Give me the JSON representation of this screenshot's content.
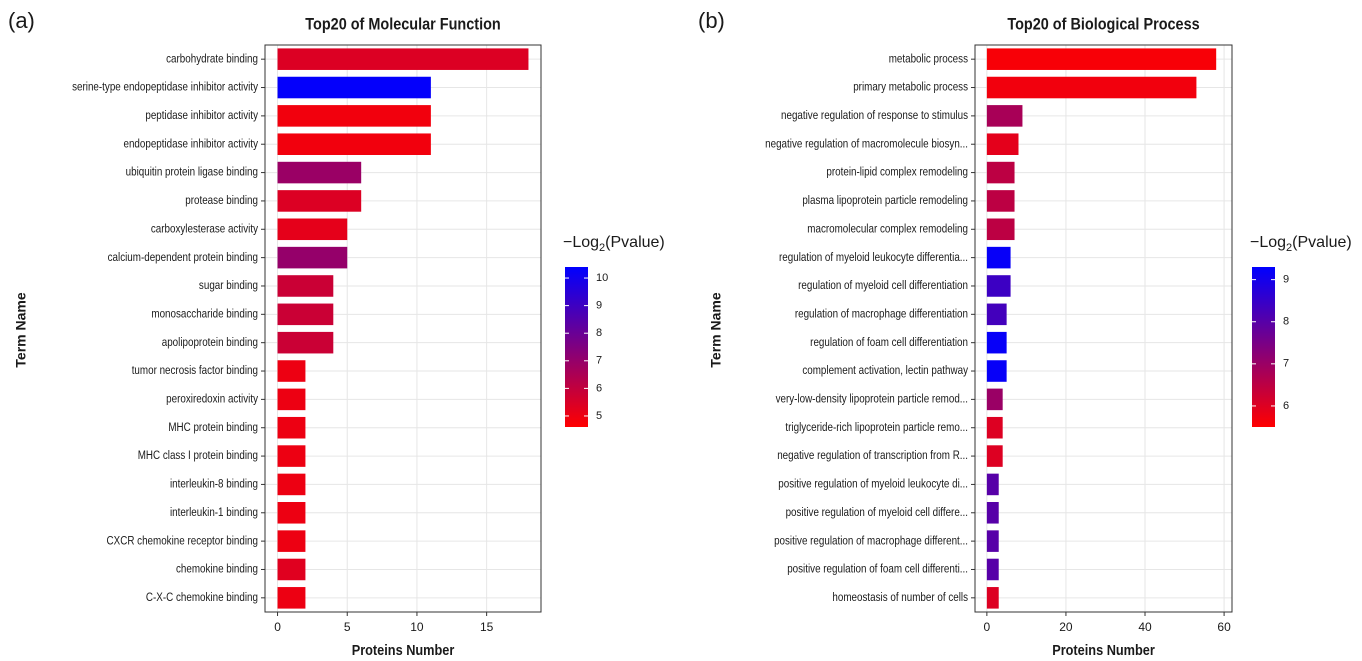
{
  "chart_data": [
    {
      "type": "bar",
      "panel_label": "(a)",
      "title": "Top20 of Molecular Function",
      "x_label": "Proteins Number",
      "y_label": "Term Name",
      "categories": [
        "carbohydrate binding",
        "serine-type endopeptidase inhibitor activity",
        "peptidase inhibitor activity",
        "endopeptidase inhibitor activity",
        "ubiquitin protein ligase binding",
        "protease binding",
        "carboxylesterase activity",
        "calcium-dependent protein binding",
        "sugar binding",
        "monosaccharide binding",
        "apolipoprotein binding",
        "tumor necrosis factor binding",
        "peroxiredoxin activity",
        "MHC protein binding",
        "MHC class I protein binding",
        "interleukin-8 binding",
        "interleukin-1 binding",
        "CXCR chemokine receptor binding",
        "chemokine binding",
        "C-X-C chemokine binding"
      ],
      "values": [
        18,
        11,
        11,
        11,
        6,
        6,
        5,
        5,
        4,
        4,
        4,
        2,
        2,
        2,
        2,
        2,
        2,
        2,
        2,
        2
      ],
      "color_values": [
        5.4,
        10.3,
        4.9,
        4.9,
        6.9,
        5.4,
        5.2,
        7.0,
        5.8,
        5.8,
        5.8,
        5.0,
        5.0,
        5.0,
        5.0,
        5.0,
        5.0,
        5.0,
        5.3,
        5.0
      ],
      "color_low": "#ff0000",
      "color_high": "#0000ff",
      "clim": [
        4.6,
        10.4
      ],
      "cticks": [
        5,
        6,
        7,
        8,
        9,
        10
      ],
      "legend_title": {
        "prefix": "−Log",
        "sub": "2",
        "suffix": "(Pvalue)"
      },
      "xlim": [
        -0.9,
        18.9
      ],
      "xticks": [
        0,
        5,
        10,
        15
      ],
      "grid": true
    },
    {
      "type": "bar",
      "panel_label": "(b)",
      "title": "Top20 of Biological Process",
      "x_label": "Proteins Number",
      "y_label": "Term Name",
      "categories": [
        "metabolic process",
        "primary metabolic process",
        "negative regulation of response to stimulus",
        "negative regulation of macromolecule biosyn...",
        "protein-lipid complex remodeling",
        "plasma lipoprotein particle remodeling",
        "macromolecular complex remodeling",
        "regulation of myeloid leukocyte differentia...",
        "regulation of myeloid cell differentiation",
        "regulation of macrophage differentiation",
        "regulation of foam cell differentiation",
        "complement activation, lectin pathway",
        "very-low-density lipoprotein particle remod...",
        "triglyceride-rich lipoprotein particle remo...",
        "negative regulation of transcription from R...",
        "positive regulation of myeloid leukocyte di...",
        "positive regulation of myeloid cell differe...",
        "positive regulation of macrophage different...",
        "positive regulation of foam cell differenti...",
        "homeostasis of number of cells"
      ],
      "values": [
        58,
        53,
        9,
        8,
        7,
        7,
        7,
        6,
        6,
        5,
        5,
        5,
        4,
        4,
        4,
        3,
        3,
        3,
        3,
        3
      ],
      "color_values": [
        5.6,
        5.7,
        6.8,
        5.9,
        6.5,
        6.5,
        6.5,
        9.2,
        8.4,
        8.3,
        9.2,
        9.2,
        7.0,
        6.0,
        6.0,
        8.0,
        8.0,
        8.0,
        8.0,
        6.0
      ],
      "color_low": "#ff0000",
      "color_high": "#0000ff",
      "clim": [
        5.5,
        9.3
      ],
      "cticks": [
        6,
        7,
        8,
        9
      ],
      "legend_title": {
        "prefix": "−Log",
        "sub": "2",
        "suffix": "(Pvalue)"
      },
      "xlim": [
        -3,
        62
      ],
      "xticks": [
        0,
        20,
        40,
        60
      ],
      "grid": true
    }
  ]
}
